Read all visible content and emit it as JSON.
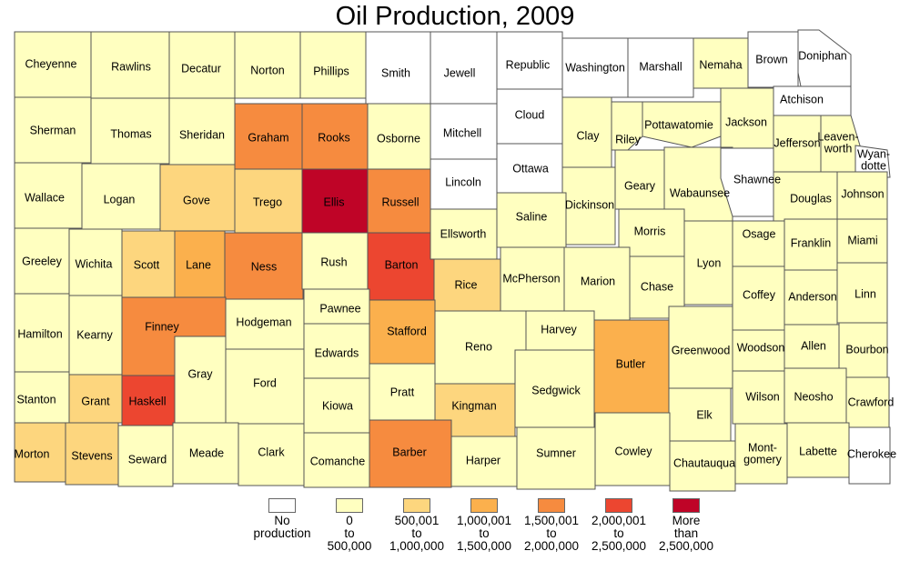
{
  "title": "Oil Production, 2009",
  "colors": {
    "c0": "#ffffff",
    "c1": "#ffffc0",
    "c2": "#fdd67e",
    "c3": "#fbb04d",
    "c4": "#f68b3f",
    "c5": "#ec4630",
    "c6": "#bf0427"
  },
  "legend": [
    {
      "cls": "c0",
      "label": "No\nproduction"
    },
    {
      "cls": "c1",
      "label": "0\nto\n500,000"
    },
    {
      "cls": "c2",
      "label": "500,001\nto\n1,000,000"
    },
    {
      "cls": "c3",
      "label": "1,000,001\nto\n1,500,000"
    },
    {
      "cls": "c4",
      "label": "1,500,001\nto\n2,000,000"
    },
    {
      "cls": "c5",
      "label": "2,000,001\nto\n2,500,000"
    },
    {
      "cls": "c6",
      "label": "More\nthan\n2,500,000"
    }
  ],
  "counties": [
    {
      "name": "Cheyenne",
      "cls": "c1"
    },
    {
      "name": "Rawlins",
      "cls": "c1"
    },
    {
      "name": "Decatur",
      "cls": "c1"
    },
    {
      "name": "Norton",
      "cls": "c1"
    },
    {
      "name": "Phillips",
      "cls": "c1"
    },
    {
      "name": "Smith",
      "cls": "c0"
    },
    {
      "name": "Jewell",
      "cls": "c0"
    },
    {
      "name": "Republic",
      "cls": "c0"
    },
    {
      "name": "Washington",
      "cls": "c0"
    },
    {
      "name": "Marshall",
      "cls": "c0"
    },
    {
      "name": "Nemaha",
      "cls": "c1"
    },
    {
      "name": "Brown",
      "cls": "c0"
    },
    {
      "name": "Doniphan",
      "cls": "c0"
    },
    {
      "name": "Sherman",
      "cls": "c1"
    },
    {
      "name": "Thomas",
      "cls": "c1"
    },
    {
      "name": "Sheridan",
      "cls": "c1"
    },
    {
      "name": "Graham",
      "cls": "c4"
    },
    {
      "name": "Rooks",
      "cls": "c4"
    },
    {
      "name": "Osborne",
      "cls": "c1"
    },
    {
      "name": "Mitchell",
      "cls": "c0"
    },
    {
      "name": "Cloud",
      "cls": "c0"
    },
    {
      "name": "Clay",
      "cls": "c1"
    },
    {
      "name": "Riley",
      "cls": "c1"
    },
    {
      "name": "Pottawatomie",
      "cls": "c1"
    },
    {
      "name": "Jackson",
      "cls": "c1"
    },
    {
      "name": "Atchison",
      "cls": "c0"
    },
    {
      "name": "Jefferson",
      "cls": "c1"
    },
    {
      "name": "Leaven-\nworth",
      "cls": "c1"
    },
    {
      "name": "Wyan-\ndotte",
      "cls": "c0"
    },
    {
      "name": "Wallace",
      "cls": "c1"
    },
    {
      "name": "Logan",
      "cls": "c1"
    },
    {
      "name": "Gove",
      "cls": "c2"
    },
    {
      "name": "Trego",
      "cls": "c2"
    },
    {
      "name": "Ellis",
      "cls": "c6"
    },
    {
      "name": "Russell",
      "cls": "c4"
    },
    {
      "name": "Lincoln",
      "cls": "c0"
    },
    {
      "name": "Ottawa",
      "cls": "c0"
    },
    {
      "name": "Dickinson",
      "cls": "c1"
    },
    {
      "name": "Geary",
      "cls": "c1"
    },
    {
      "name": "Wabaunsee",
      "cls": "c1"
    },
    {
      "name": "Shawnee",
      "cls": "c0"
    },
    {
      "name": "Douglas",
      "cls": "c1"
    },
    {
      "name": "Johnson",
      "cls": "c1"
    },
    {
      "name": "Greeley",
      "cls": "c1"
    },
    {
      "name": "Wichita",
      "cls": "c1"
    },
    {
      "name": "Scott",
      "cls": "c2"
    },
    {
      "name": "Lane",
      "cls": "c3"
    },
    {
      "name": "Ness",
      "cls": "c4"
    },
    {
      "name": "Rush",
      "cls": "c1"
    },
    {
      "name": "Barton",
      "cls": "c5"
    },
    {
      "name": "Ellsworth",
      "cls": "c1"
    },
    {
      "name": "Saline",
      "cls": "c1"
    },
    {
      "name": "Morris",
      "cls": "c1"
    },
    {
      "name": "Osage",
      "cls": "c1"
    },
    {
      "name": "Franklin",
      "cls": "c1"
    },
    {
      "name": "Miami",
      "cls": "c1"
    },
    {
      "name": "Rice",
      "cls": "c2"
    },
    {
      "name": "McPherson",
      "cls": "c1"
    },
    {
      "name": "Marion",
      "cls": "c1"
    },
    {
      "name": "Chase",
      "cls": "c1"
    },
    {
      "name": "Lyon",
      "cls": "c1"
    },
    {
      "name": "Coffey",
      "cls": "c1"
    },
    {
      "name": "Anderson",
      "cls": "c1"
    },
    {
      "name": "Linn",
      "cls": "c1"
    },
    {
      "name": "Hamilton",
      "cls": "c1"
    },
    {
      "name": "Kearny",
      "cls": "c1"
    },
    {
      "name": "Finney",
      "cls": "c4"
    },
    {
      "name": "Hodgeman",
      "cls": "c1"
    },
    {
      "name": "Pawnee",
      "cls": "c1"
    },
    {
      "name": "Edwards",
      "cls": "c1"
    },
    {
      "name": "Stafford",
      "cls": "c3"
    },
    {
      "name": "Reno",
      "cls": "c1"
    },
    {
      "name": "Harvey",
      "cls": "c1"
    },
    {
      "name": "Butler",
      "cls": "c3"
    },
    {
      "name": "Greenwood",
      "cls": "c1"
    },
    {
      "name": "Woodson",
      "cls": "c1"
    },
    {
      "name": "Allen",
      "cls": "c1"
    },
    {
      "name": "Bourbon",
      "cls": "c1"
    },
    {
      "name": "Gray",
      "cls": "c1"
    },
    {
      "name": "Ford",
      "cls": "c1"
    },
    {
      "name": "Stanton",
      "cls": "c1"
    },
    {
      "name": "Grant",
      "cls": "c2"
    },
    {
      "name": "Haskell",
      "cls": "c5"
    },
    {
      "name": "Kiowa",
      "cls": "c1"
    },
    {
      "name": "Pratt",
      "cls": "c1"
    },
    {
      "name": "Kingman",
      "cls": "c2"
    },
    {
      "name": "Sedgwick",
      "cls": "c1"
    },
    {
      "name": "Elk",
      "cls": "c1"
    },
    {
      "name": "Wilson",
      "cls": "c1"
    },
    {
      "name": "Neosho",
      "cls": "c1"
    },
    {
      "name": "Crawford",
      "cls": "c1"
    },
    {
      "name": "Morton",
      "cls": "c2"
    },
    {
      "name": "Stevens",
      "cls": "c2"
    },
    {
      "name": "Seward",
      "cls": "c1"
    },
    {
      "name": "Meade",
      "cls": "c1"
    },
    {
      "name": "Clark",
      "cls": "c1"
    },
    {
      "name": "Comanche",
      "cls": "c1"
    },
    {
      "name": "Barber",
      "cls": "c4"
    },
    {
      "name": "Harper",
      "cls": "c1"
    },
    {
      "name": "Sumner",
      "cls": "c1"
    },
    {
      "name": "Cowley",
      "cls": "c1"
    },
    {
      "name": "Chautauqua",
      "cls": "c1"
    },
    {
      "name": "Mont-\ngomery",
      "cls": "c1"
    },
    {
      "name": "Labette",
      "cls": "c1"
    },
    {
      "name": "Cherokee",
      "cls": "c0"
    }
  ]
}
